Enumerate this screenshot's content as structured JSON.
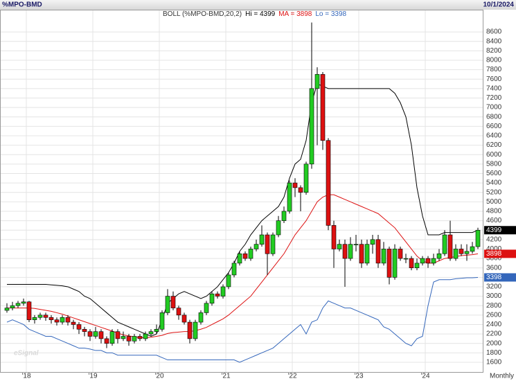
{
  "chart_data": {
    "type": "candlestick",
    "symbol": "%MPO-BMD",
    "date": "10/1/2024",
    "watermark": "eSignal",
    "x_axis_label": "Monthly",
    "indicator": "BOLL (%MPO-BMD,20,2)",
    "legend_separator": " = ",
    "colors": {
      "up": "#22cc22",
      "down": "#dd1111"
    },
    "grid": true,
    "ylim": [
      1350,
      9100
    ],
    "yticks": [
      1600,
      1800,
      2000,
      2200,
      2400,
      2600,
      2800,
      3000,
      3200,
      3400,
      3600,
      3800,
      4000,
      4200,
      4400,
      4600,
      4800,
      5000,
      5200,
      5400,
      5600,
      5800,
      6000,
      6200,
      6400,
      6600,
      6800,
      7000,
      7200,
      7400,
      7600,
      7800,
      8000,
      8200,
      8400,
      8600
    ],
    "categories": [
      null,
      null,
      null,
      null,
      "'18",
      null,
      null,
      null,
      null,
      null,
      null,
      null,
      null,
      null,
      null,
      null,
      "'19",
      null,
      null,
      null,
      null,
      null,
      null,
      null,
      null,
      null,
      null,
      null,
      "'20",
      null,
      null,
      null,
      null,
      null,
      null,
      null,
      null,
      null,
      null,
      null,
      "'21",
      null,
      null,
      null,
      null,
      null,
      null,
      null,
      null,
      null,
      null,
      null,
      "'22",
      null,
      null,
      null,
      null,
      null,
      null,
      null,
      null,
      null,
      null,
      null,
      "'23",
      null,
      null,
      null,
      null,
      null,
      null,
      null,
      null,
      null,
      null,
      null,
      "'24",
      null,
      null,
      null,
      null,
      null,
      null,
      null,
      null,
      null
    ],
    "candles": [
      [
        2700,
        2850,
        2650,
        2750
      ],
      [
        2750,
        2880,
        2700,
        2800
      ],
      [
        2800,
        2900,
        2750,
        2850
      ],
      [
        2850,
        2950,
        2800,
        2880
      ],
      [
        2880,
        2900,
        2450,
        2500
      ],
      [
        2500,
        2600,
        2420,
        2550
      ],
      [
        2550,
        2650,
        2500,
        2600
      ],
      [
        2600,
        2650,
        2480,
        2550
      ],
      [
        2550,
        2600,
        2420,
        2500
      ],
      [
        2500,
        2550,
        2380,
        2450
      ],
      [
        2450,
        2600,
        2400,
        2550
      ],
      [
        2550,
        2600,
        2380,
        2450
      ],
      [
        2450,
        2500,
        2300,
        2400
      ],
      [
        2400,
        2450,
        2200,
        2300
      ],
      [
        2300,
        2350,
        2150,
        2250
      ],
      [
        2250,
        2300,
        2050,
        2150
      ],
      [
        2150,
        2350,
        2100,
        2250
      ],
      [
        2250,
        2300,
        2000,
        2100
      ],
      [
        2100,
        2150,
        1900,
        2000
      ],
      [
        2000,
        2300,
        1950,
        2250
      ],
      [
        2250,
        2300,
        2000,
        2100
      ],
      [
        2100,
        2250,
        2050,
        2150
      ],
      [
        2150,
        2200,
        1950,
        2050
      ],
      [
        2050,
        2200,
        2000,
        2150
      ],
      [
        2150,
        2200,
        2050,
        2100
      ],
      [
        2100,
        2250,
        2050,
        2200
      ],
      [
        2200,
        2300,
        2150,
        2250
      ],
      [
        2250,
        2400,
        2200,
        2300
      ],
      [
        2300,
        2700,
        2250,
        2650
      ],
      [
        2650,
        3150,
        2600,
        3000
      ],
      [
        3000,
        3100,
        2700,
        2750
      ],
      [
        2750,
        2800,
        2500,
        2600
      ],
      [
        2600,
        2650,
        2400,
        2450
      ],
      [
        2450,
        2500,
        2000,
        2100
      ],
      [
        2100,
        2500,
        2050,
        2450
      ],
      [
        2450,
        2700,
        2400,
        2650
      ],
      [
        2650,
        2900,
        2600,
        2850
      ],
      [
        2850,
        3100,
        2800,
        3050
      ],
      [
        3050,
        3100,
        2950,
        3000
      ],
      [
        3000,
        3250,
        2950,
        3200
      ],
      [
        3200,
        3500,
        3150,
        3450
      ],
      [
        3450,
        3750,
        3400,
        3700
      ],
      [
        3700,
        3950,
        3650,
        3900
      ],
      [
        3900,
        3950,
        3750,
        3800
      ],
      [
        3800,
        4050,
        3750,
        4000
      ],
      [
        4000,
        4200,
        3950,
        4100
      ],
      [
        4100,
        4500,
        4050,
        4300
      ],
      [
        4300,
        4350,
        3450,
        3900
      ],
      [
        3900,
        4350,
        3850,
        4300
      ],
      [
        4300,
        4700,
        4250,
        4600
      ],
      [
        4600,
        4900,
        4550,
        4800
      ],
      [
        4800,
        5450,
        4750,
        5400
      ],
      [
        5400,
        5500,
        5100,
        5300
      ],
      [
        5300,
        5350,
        4800,
        5200
      ],
      [
        5200,
        5850,
        5150,
        5800
      ],
      [
        5800,
        8800,
        5700,
        7400
      ],
      [
        7400,
        7850,
        6200,
        7700
      ],
      [
        7700,
        7750,
        6100,
        6300
      ],
      [
        6300,
        6350,
        4400,
        4500
      ],
      [
        4500,
        4600,
        3600,
        4000
      ],
      [
        4000,
        4200,
        3950,
        4100
      ],
      [
        4100,
        4200,
        3200,
        3800
      ],
      [
        3800,
        4250,
        3750,
        4100
      ],
      [
        4100,
        4300,
        3950,
        4100
      ],
      [
        4100,
        4200,
        3600,
        3700
      ],
      [
        3700,
        4200,
        3650,
        4100
      ],
      [
        4100,
        4300,
        3900,
        4200
      ],
      [
        4200,
        4300,
        3600,
        3700
      ],
      [
        3700,
        4150,
        3650,
        4000
      ],
      [
        4000,
        4050,
        3250,
        3400
      ],
      [
        3400,
        4100,
        3350,
        4000
      ],
      [
        4000,
        4050,
        3750,
        3800
      ],
      [
        3800,
        3900,
        3700,
        3800
      ],
      [
        3800,
        3850,
        3550,
        3600
      ],
      [
        3600,
        3800,
        3550,
        3700
      ],
      [
        3700,
        3850,
        3650,
        3800
      ],
      [
        3800,
        3850,
        3600,
        3700
      ],
      [
        3700,
        3900,
        3650,
        3800
      ],
      [
        3800,
        4000,
        3750,
        3900
      ],
      [
        3900,
        4400,
        3850,
        4300
      ],
      [
        4300,
        4600,
        3750,
        3800
      ],
      [
        3800,
        4100,
        3750,
        4000
      ],
      [
        4000,
        4100,
        3850,
        3900
      ],
      [
        3900,
        4100,
        3750,
        3950
      ],
      [
        3950,
        4150,
        3900,
        4050
      ],
      [
        4050,
        4450,
        4000,
        4399
      ]
    ],
    "series": [
      {
        "name": "Hi",
        "color": "#000000",
        "values": [
          3250,
          3250,
          3250,
          3250,
          3250,
          3250,
          3250,
          3250,
          3240,
          3230,
          3220,
          3200,
          3150,
          3100,
          3000,
          2950,
          2850,
          2750,
          2650,
          2550,
          2450,
          2400,
          2350,
          2300,
          2250,
          2200,
          2150,
          2200,
          2500,
          2850,
          2950,
          3050,
          3100,
          3050,
          3000,
          2950,
          3000,
          3100,
          3200,
          3350,
          3500,
          3700,
          3950,
          4100,
          4300,
          4450,
          4600,
          4700,
          4800,
          4900,
          5100,
          5500,
          5800,
          5900,
          6300,
          7100,
          7500,
          7450,
          7400,
          7400,
          7400,
          7400,
          7400,
          7400,
          7400,
          7400,
          7400,
          7400,
          7400,
          7400,
          7300,
          7100,
          6800,
          6200,
          5300,
          4700,
          4300,
          4300,
          4300,
          4350,
          4350,
          4350,
          4350,
          4350,
          4350,
          4399
        ]
      },
      {
        "name": "MA",
        "color": "#dd1111",
        "values": [
          2750,
          2750,
          2750,
          2750,
          2750,
          2740,
          2720,
          2700,
          2680,
          2650,
          2620,
          2580,
          2540,
          2500,
          2460,
          2420,
          2380,
          2340,
          2300,
          2260,
          2220,
          2180,
          2160,
          2140,
          2120,
          2120,
          2130,
          2150,
          2170,
          2210,
          2230,
          2240,
          2250,
          2250,
          2270,
          2300,
          2340,
          2400,
          2460,
          2520,
          2600,
          2700,
          2800,
          2900,
          3000,
          3150,
          3300,
          3450,
          3600,
          3750,
          3900,
          4100,
          4300,
          4450,
          4600,
          4800,
          5000,
          5100,
          5150,
          5150,
          5100,
          5050,
          5000,
          4950,
          4900,
          4850,
          4800,
          4750,
          4650,
          4550,
          4450,
          4300,
          4150,
          4000,
          3850,
          3750,
          3700,
          3700,
          3750,
          3800,
          3820,
          3840,
          3860,
          3870,
          3880,
          3898
        ]
      },
      {
        "name": "Lo",
        "color": "#3366bb",
        "values": [
          2450,
          2500,
          2450,
          2400,
          2300,
          2250,
          2200,
          2150,
          2150,
          2100,
          2050,
          2000,
          1950,
          1900,
          1900,
          1880,
          1850,
          1850,
          1800,
          1800,
          1750,
          1750,
          1750,
          1750,
          1750,
          1750,
          1750,
          1750,
          1700,
          1650,
          1650,
          1650,
          1650,
          1650,
          1650,
          1650,
          1650,
          1650,
          1650,
          1650,
          1650,
          1650,
          1600,
          1650,
          1700,
          1750,
          1800,
          1850,
          1900,
          2000,
          2100,
          2200,
          2300,
          2400,
          2200,
          2450,
          2500,
          2750,
          2900,
          2850,
          2800,
          2750,
          2750,
          2700,
          2650,
          2600,
          2550,
          2500,
          2350,
          2300,
          2200,
          2100,
          2000,
          1950,
          2100,
          2150,
          2800,
          3300,
          3350,
          3350,
          3350,
          3370,
          3380,
          3390,
          3390,
          3398
        ]
      }
    ]
  }
}
